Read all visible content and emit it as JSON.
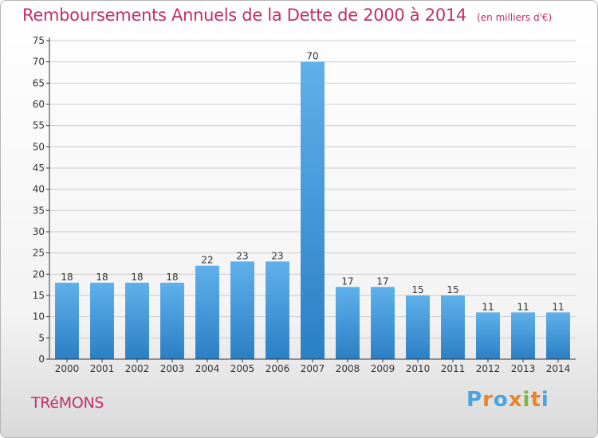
{
  "chart_data": {
    "type": "bar",
    "title": "Remboursements Annuels de la Dette de 2000 à 2014",
    "subtitle": "(en milliers d'€)",
    "categories": [
      "2000",
      "2001",
      "2002",
      "2003",
      "2004",
      "2005",
      "2006",
      "2007",
      "2008",
      "2009",
      "2010",
      "2011",
      "2012",
      "2013",
      "2014"
    ],
    "values": [
      18,
      18,
      18,
      18,
      22,
      23,
      23,
      70,
      17,
      17,
      15,
      15,
      11,
      11,
      11
    ],
    "ylim": [
      0,
      75
    ],
    "yticks": [
      0,
      5,
      10,
      15,
      20,
      25,
      30,
      35,
      40,
      45,
      50,
      55,
      60,
      65,
      70,
      75
    ],
    "grid": true,
    "bar_color": "#3a93d9"
  },
  "footer": {
    "commune": "TRéMONS",
    "brand": "Proxiti",
    "brand_colors": [
      "#4aa3df",
      "#e8842c",
      "#4aa3df",
      "#e8842c",
      "#7ab648",
      "#e8842c",
      "#4aa3df"
    ]
  },
  "colors": {
    "title": "#c0306a",
    "grid": "#cccccc",
    "axis": "#333333"
  }
}
